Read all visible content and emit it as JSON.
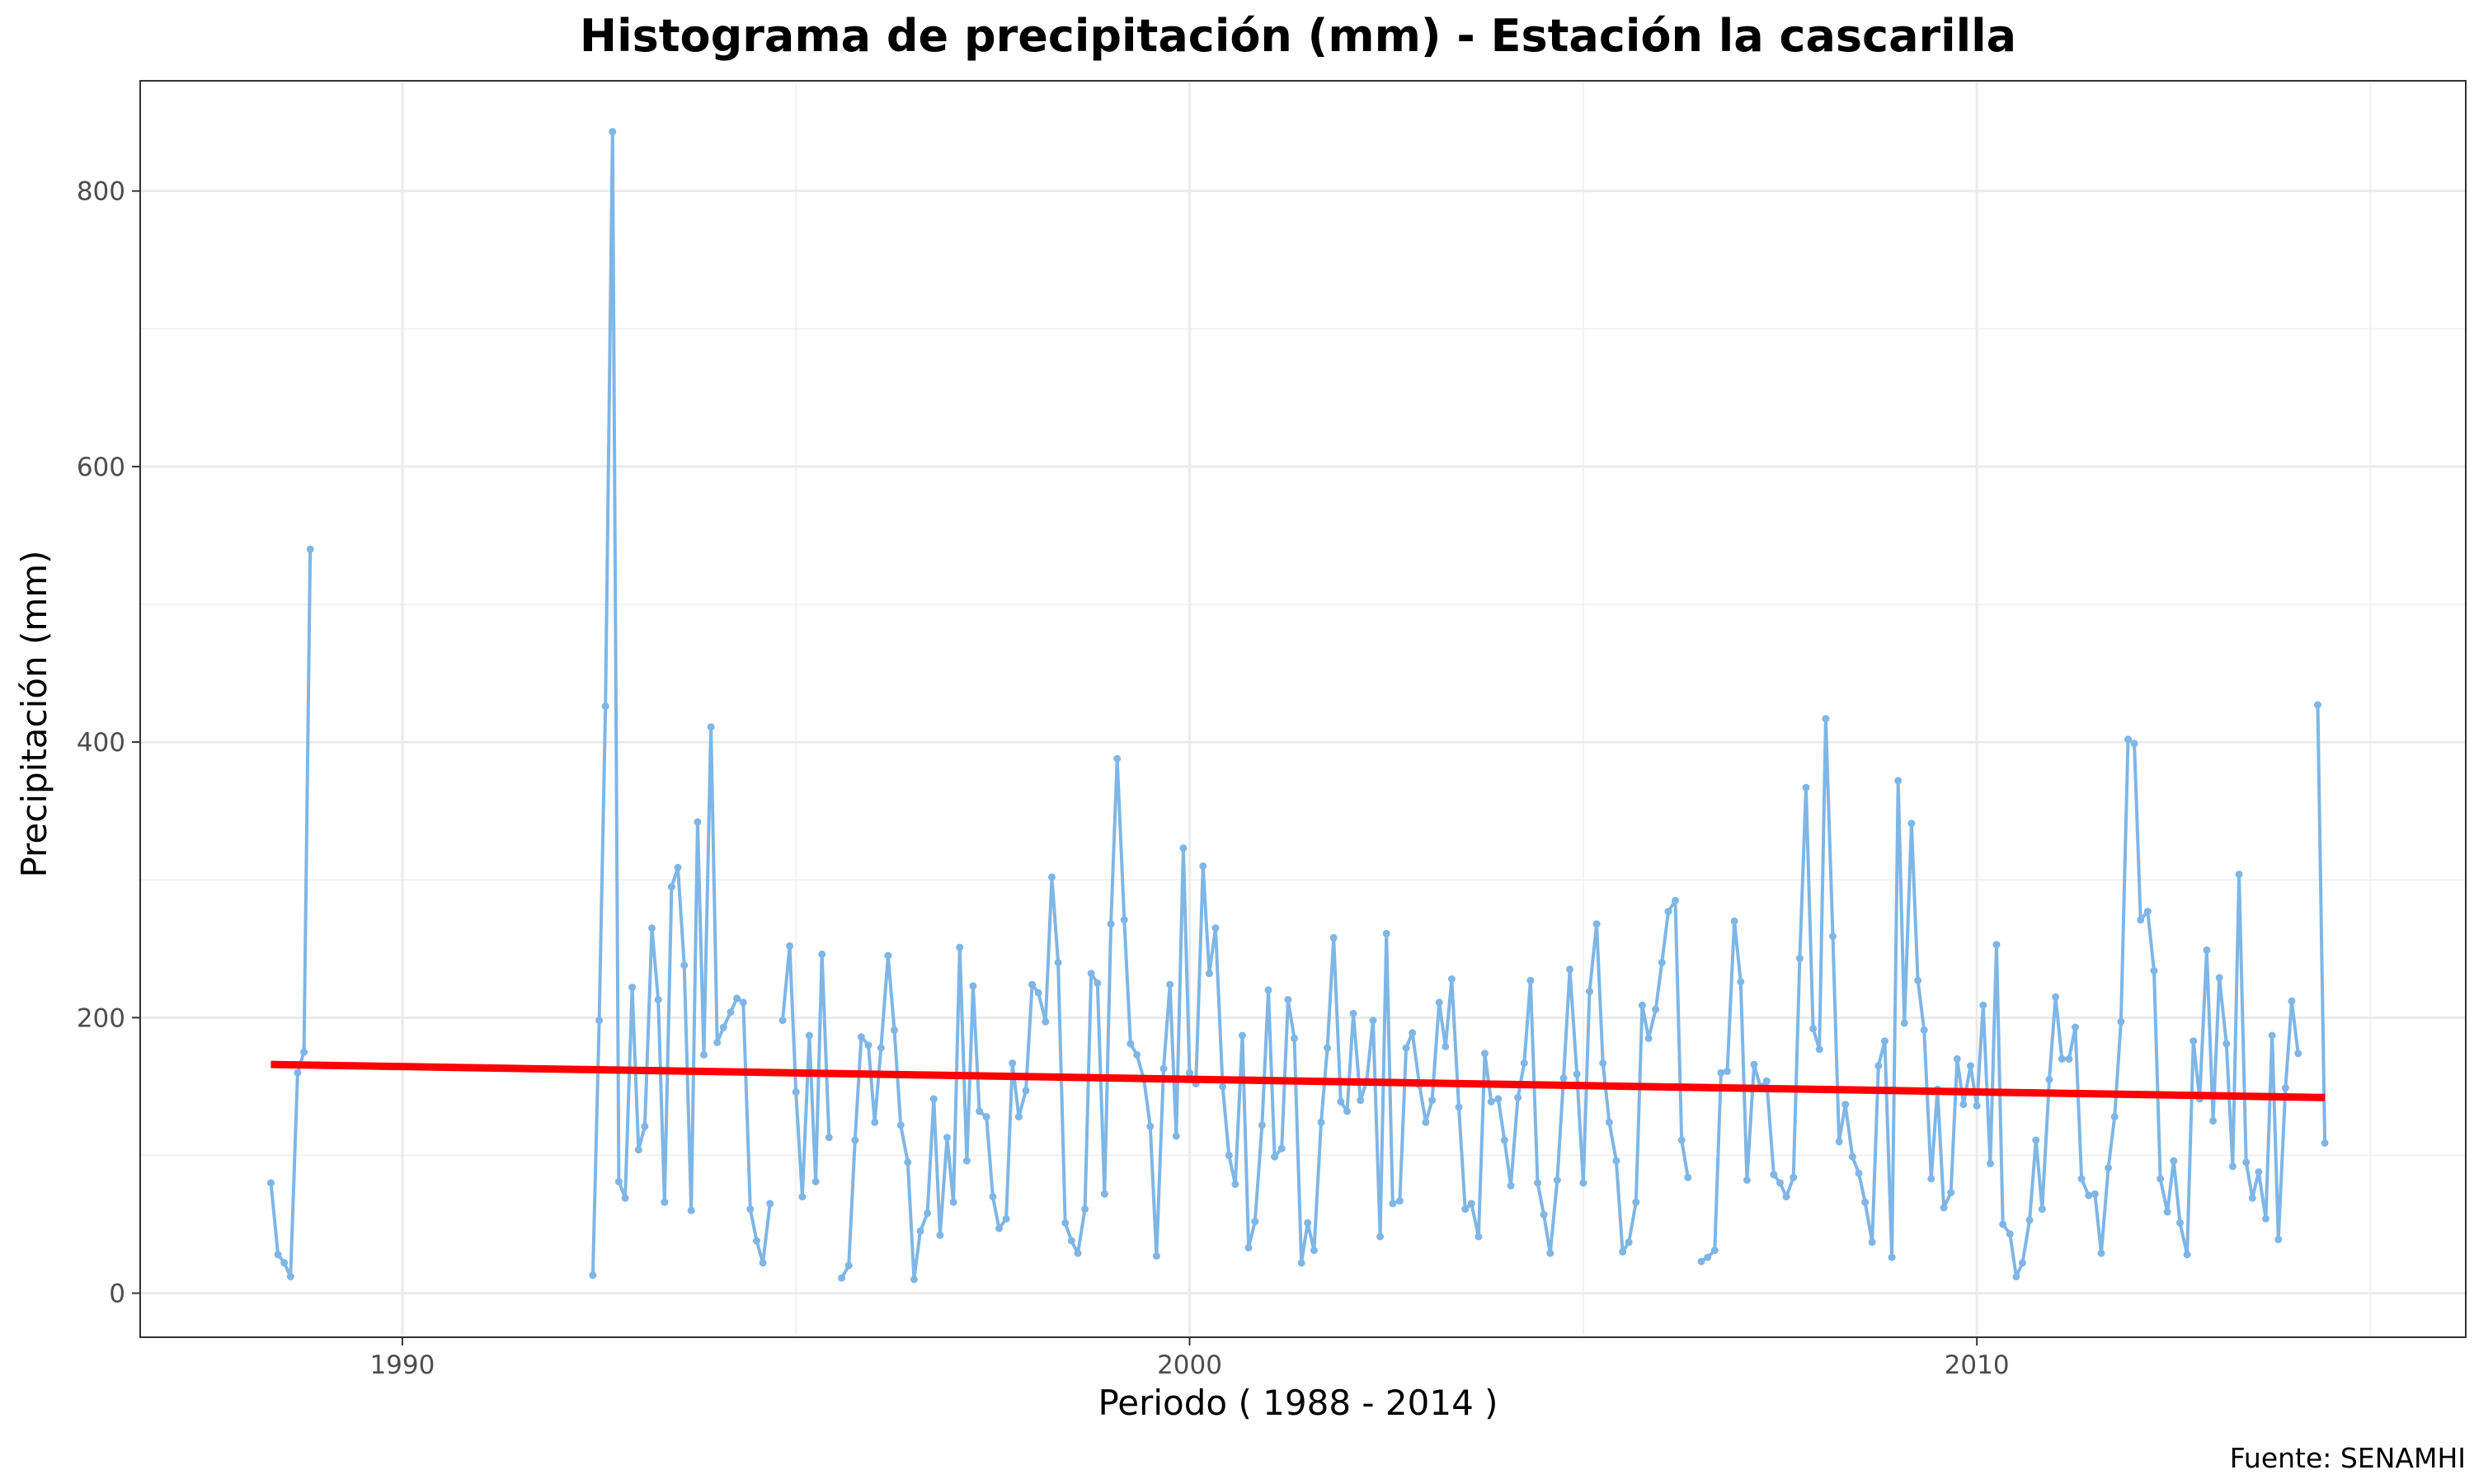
{
  "chart_data": {
    "type": "line",
    "title": "Histograma de precipitación (mm) - Estación la cascarilla",
    "xlabel": "Periodo ( 1988 - 2014 )",
    "ylabel": "Precipitación (mm)",
    "caption": "Fuente: SENAMHI",
    "xlim": [
      1986.67,
      2016.21
    ],
    "ylim": [
      -32,
      880
    ],
    "x_ticks": [
      1990,
      2000,
      2010
    ],
    "y_ticks": [
      0,
      200,
      400,
      600,
      800
    ],
    "grid": true,
    "legend": "none",
    "colors": {
      "series": "#7EB6E6",
      "trend": "#FF0000",
      "border": "#333333",
      "grid_major": "#EBEBEB",
      "grid_minor": "#F2F2F2"
    },
    "series": [
      {
        "style": "line+points",
        "segments": [
          [
            [
              1988.33,
              80
            ],
            [
              1988.42,
              28
            ],
            [
              1988.5,
              22
            ],
            [
              1988.58,
              12
            ],
            [
              1988.67,
              160
            ],
            [
              1988.75,
              175
            ],
            [
              1988.83,
              540
            ]
          ],
          [
            [
              1992.42,
              13
            ],
            [
              1992.5,
              198
            ],
            [
              1992.58,
              426
            ],
            [
              1992.67,
              843
            ],
            [
              1992.75,
              81
            ],
            [
              1992.83,
              69
            ],
            [
              1992.92,
              222
            ],
            [
              1993.0,
              104
            ],
            [
              1993.08,
              121
            ],
            [
              1993.17,
              265
            ],
            [
              1993.25,
              213
            ],
            [
              1993.33,
              66
            ],
            [
              1993.42,
              295
            ],
            [
              1993.5,
              309
            ],
            [
              1993.58,
              238
            ],
            [
              1993.67,
              60
            ],
            [
              1993.75,
              342
            ],
            [
              1993.83,
              173
            ],
            [
              1993.92,
              411
            ],
            [
              1994.0,
              182
            ],
            [
              1994.08,
              193
            ],
            [
              1994.17,
              204
            ],
            [
              1994.25,
              214
            ],
            [
              1994.33,
              211
            ],
            [
              1994.42,
              61
            ],
            [
              1994.5,
              38
            ],
            [
              1994.58,
              22
            ],
            [
              1994.67,
              65
            ]
          ],
          [
            [
              1994.83,
              198
            ],
            [
              1994.92,
              252
            ],
            [
              1995.0,
              146
            ],
            [
              1995.08,
              70
            ],
            [
              1995.17,
              187
            ],
            [
              1995.25,
              81
            ],
            [
              1995.33,
              246
            ],
            [
              1995.42,
              113
            ]
          ],
          [
            [
              1995.58,
              11
            ],
            [
              1995.67,
              20
            ],
            [
              1995.75,
              111
            ],
            [
              1995.83,
              186
            ],
            [
              1995.92,
              180
            ],
            [
              1996.0,
              124
            ],
            [
              1996.08,
              178
            ],
            [
              1996.17,
              245
            ],
            [
              1996.25,
              191
            ],
            [
              1996.33,
              122
            ],
            [
              1996.42,
              95
            ],
            [
              1996.5,
              10
            ],
            [
              1996.58,
              45
            ],
            [
              1996.67,
              58
            ],
            [
              1996.75,
              141
            ],
            [
              1996.83,
              42
            ],
            [
              1996.92,
              113
            ],
            [
              1997.0,
              66
            ],
            [
              1997.08,
              251
            ],
            [
              1997.17,
              96
            ],
            [
              1997.25,
              223
            ],
            [
              1997.33,
              132
            ],
            [
              1997.42,
              128
            ],
            [
              1997.5,
              70
            ],
            [
              1997.58,
              47
            ],
            [
              1997.67,
              54
            ],
            [
              1997.75,
              167
            ],
            [
              1997.83,
              128
            ],
            [
              1997.92,
              147
            ],
            [
              1998.0,
              224
            ],
            [
              1998.08,
              218
            ],
            [
              1998.17,
              197
            ],
            [
              1998.25,
              302
            ],
            [
              1998.33,
              240
            ],
            [
              1998.42,
              51
            ],
            [
              1998.5,
              38
            ],
            [
              1998.58,
              29
            ],
            [
              1998.67,
              61
            ],
            [
              1998.75,
              232
            ],
            [
              1998.83,
              225
            ],
            [
              1998.92,
              72
            ],
            [
              1999.0,
              268
            ],
            [
              1999.08,
              388
            ],
            [
              1999.17,
              271
            ],
            [
              1999.25,
              181
            ],
            [
              1999.33,
              173
            ],
            [
              1999.42,
              155
            ],
            [
              1999.5,
              121
            ],
            [
              1999.58,
              27
            ],
            [
              1999.67,
              163
            ],
            [
              1999.75,
              224
            ],
            [
              1999.83,
              114
            ],
            [
              1999.92,
              323
            ],
            [
              2000.0,
              160
            ],
            [
              2000.08,
              152
            ],
            [
              2000.17,
              310
            ],
            [
              2000.25,
              232
            ],
            [
              2000.33,
              265
            ],
            [
              2000.42,
              150
            ],
            [
              2000.5,
              100
            ],
            [
              2000.58,
              79
            ],
            [
              2000.67,
              187
            ],
            [
              2000.75,
              33
            ],
            [
              2000.83,
              52
            ],
            [
              2000.92,
              122
            ],
            [
              2001.0,
              220
            ],
            [
              2001.08,
              99
            ],
            [
              2001.17,
              105
            ],
            [
              2001.25,
              213
            ],
            [
              2001.33,
              185
            ],
            [
              2001.42,
              22
            ],
            [
              2001.5,
              51
            ],
            [
              2001.58,
              31
            ],
            [
              2001.67,
              124
            ],
            [
              2001.75,
              178
            ],
            [
              2001.83,
              258
            ],
            [
              2001.92,
              139
            ],
            [
              2002.0,
              132
            ],
            [
              2002.08,
              203
            ],
            [
              2002.17,
              140
            ],
            [
              2002.25,
              154
            ],
            [
              2002.33,
              198
            ],
            [
              2002.42,
              41
            ],
            [
              2002.5,
              261
            ],
            [
              2002.58,
              65
            ],
            [
              2002.67,
              67
            ],
            [
              2002.75,
              178
            ],
            [
              2002.83,
              189
            ],
            [
              2002.92,
              151
            ],
            [
              2003.0,
              124
            ],
            [
              2003.08,
              140
            ],
            [
              2003.17,
              211
            ],
            [
              2003.25,
              179
            ],
            [
              2003.33,
              228
            ],
            [
              2003.42,
              135
            ],
            [
              2003.5,
              61
            ],
            [
              2003.58,
              65
            ],
            [
              2003.67,
              41
            ],
            [
              2003.75,
              174
            ],
            [
              2003.83,
              139
            ],
            [
              2003.92,
              141
            ],
            [
              2004.0,
              111
            ],
            [
              2004.08,
              78
            ],
            [
              2004.17,
              142
            ],
            [
              2004.25,
              167
            ],
            [
              2004.33,
              227
            ],
            [
              2004.42,
              80
            ],
            [
              2004.5,
              57
            ],
            [
              2004.58,
              29
            ],
            [
              2004.67,
              82
            ],
            [
              2004.75,
              156
            ],
            [
              2004.83,
              235
            ],
            [
              2004.92,
              159
            ],
            [
              2005.0,
              80
            ],
            [
              2005.08,
              219
            ],
            [
              2005.17,
              268
            ],
            [
              2005.25,
              167
            ],
            [
              2005.33,
              124
            ],
            [
              2005.42,
              96
            ],
            [
              2005.5,
              30
            ],
            [
              2005.58,
              37
            ],
            [
              2005.67,
              66
            ],
            [
              2005.75,
              209
            ],
            [
              2005.83,
              185
            ],
            [
              2005.92,
              206
            ],
            [
              2006.0,
              240
            ],
            [
              2006.08,
              277
            ],
            [
              2006.17,
              285
            ],
            [
              2006.25,
              111
            ],
            [
              2006.33,
              84
            ]
          ],
          [
            [
              2006.5,
              23
            ],
            [
              2006.58,
              26
            ],
            [
              2006.67,
              31
            ],
            [
              2006.75,
              160
            ],
            [
              2006.83,
              161
            ],
            [
              2006.92,
              270
            ],
            [
              2007.0,
              226
            ],
            [
              2007.08,
              82
            ],
            [
              2007.17,
              166
            ],
            [
              2007.25,
              150
            ],
            [
              2007.33,
              154
            ],
            [
              2007.42,
              86
            ],
            [
              2007.5,
              80
            ],
            [
              2007.58,
              70
            ],
            [
              2007.67,
              84
            ],
            [
              2007.75,
              243
            ],
            [
              2007.83,
              367
            ],
            [
              2007.92,
              192
            ],
            [
              2008.0,
              177
            ],
            [
              2008.08,
              417
            ],
            [
              2008.17,
              259
            ],
            [
              2008.25,
              110
            ],
            [
              2008.33,
              137
            ],
            [
              2008.42,
              99
            ],
            [
              2008.5,
              87
            ],
            [
              2008.58,
              66
            ],
            [
              2008.67,
              37
            ],
            [
              2008.75,
              165
            ],
            [
              2008.83,
              183
            ],
            [
              2008.92,
              26
            ],
            [
              2009.0,
              372
            ],
            [
              2009.08,
              196
            ],
            [
              2009.17,
              341
            ],
            [
              2009.25,
              227
            ],
            [
              2009.33,
              191
            ],
            [
              2009.42,
              83
            ],
            [
              2009.5,
              148
            ],
            [
              2009.58,
              62
            ],
            [
              2009.67,
              73
            ],
            [
              2009.75,
              170
            ],
            [
              2009.83,
              137
            ],
            [
              2009.92,
              165
            ],
            [
              2010.0,
              136
            ],
            [
              2010.08,
              209
            ],
            [
              2010.17,
              94
            ],
            [
              2010.25,
              253
            ],
            [
              2010.33,
              50
            ],
            [
              2010.42,
              43
            ],
            [
              2010.5,
              12
            ],
            [
              2010.58,
              22
            ],
            [
              2010.67,
              53
            ],
            [
              2010.75,
              111
            ],
            [
              2010.83,
              61
            ],
            [
              2010.92,
              155
            ],
            [
              2011.0,
              215
            ],
            [
              2011.08,
              170
            ],
            [
              2011.17,
              170
            ],
            [
              2011.25,
              193
            ],
            [
              2011.33,
              83
            ],
            [
              2011.42,
              71
            ],
            [
              2011.5,
              72
            ],
            [
              2011.58,
              29
            ],
            [
              2011.67,
              91
            ],
            [
              2011.75,
              128
            ],
            [
              2011.83,
              197
            ],
            [
              2011.92,
              402
            ],
            [
              2012.0,
              399
            ],
            [
              2012.08,
              271
            ],
            [
              2012.17,
              277
            ],
            [
              2012.25,
              234
            ],
            [
              2012.33,
              83
            ],
            [
              2012.42,
              59
            ],
            [
              2012.5,
              96
            ],
            [
              2012.58,
              51
            ],
            [
              2012.67,
              28
            ],
            [
              2012.75,
              183
            ],
            [
              2012.83,
              141
            ],
            [
              2012.92,
              249
            ],
            [
              2013.0,
              125
            ],
            [
              2013.08,
              229
            ],
            [
              2013.17,
              181
            ],
            [
              2013.25,
              92
            ],
            [
              2013.33,
              304
            ],
            [
              2013.42,
              95
            ],
            [
              2013.5,
              69
            ],
            [
              2013.58,
              88
            ],
            [
              2013.67,
              54
            ],
            [
              2013.75,
              187
            ],
            [
              2013.83,
              39
            ],
            [
              2013.92,
              149
            ],
            [
              2014.0,
              212
            ],
            [
              2014.08,
              174
            ]
          ],
          [
            [
              2014.33,
              427
            ],
            [
              2014.42,
              109
            ]
          ]
        ]
      },
      {
        "style": "trend-line",
        "x": [
          1988.33,
          2014.42
        ],
        "y": [
          166,
          142
        ]
      }
    ]
  }
}
